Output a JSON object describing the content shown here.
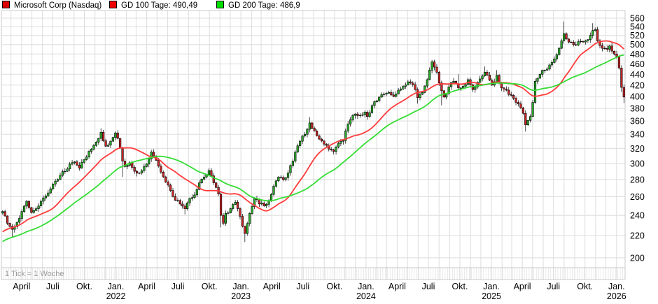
{
  "legend": {
    "series": [
      {
        "label": "Microsoft Corp (Nasdaq)",
        "color": "#dd0000"
      },
      {
        "label": "GD 100 Tage: 490,49",
        "color": "#ee0000"
      },
      {
        "label": "GD 200 Tage: 486,9",
        "color": "#00dd00"
      }
    ]
  },
  "footer_note": "1 Tick = 1 Woche",
  "chart_data": {
    "type": "candlestick",
    "title": "Microsoft Corp (Nasdaq)",
    "tick_interval": "1 Woche",
    "scale": "log",
    "weeks_visible": 260,
    "start_week": "2021-02-01",
    "ylim": [
      190,
      572
    ],
    "y_ticks": [
      560,
      540,
      520,
      500,
      480,
      460,
      440,
      420,
      400,
      380,
      360,
      340,
      320,
      300,
      280,
      260,
      240,
      220,
      200
    ],
    "x_ticks": [
      {
        "m": "2021-04",
        "label": "April"
      },
      {
        "m": "2021-07",
        "label": "Juli"
      },
      {
        "m": "2021-10",
        "label": "Okt."
      },
      {
        "m": "2022-01",
        "label": "Jan.",
        "year": "2022"
      },
      {
        "m": "2022-04",
        "label": "April"
      },
      {
        "m": "2022-07",
        "label": "Juli"
      },
      {
        "m": "2022-10",
        "label": "Okt."
      },
      {
        "m": "2023-01",
        "label": "Jan.",
        "year": "2023"
      },
      {
        "m": "2023-04",
        "label": "April"
      },
      {
        "m": "2023-07",
        "label": "Juli"
      },
      {
        "m": "2023-10",
        "label": "Okt."
      },
      {
        "m": "2024-01",
        "label": "Jan.",
        "year": "2024"
      },
      {
        "m": "2024-04",
        "label": "April"
      },
      {
        "m": "2024-07",
        "label": "Juli"
      },
      {
        "m": "2024-10",
        "label": "Okt."
      },
      {
        "m": "2025-01",
        "label": "Jan.",
        "year": "2025"
      },
      {
        "m": "2025-04",
        "label": "April"
      },
      {
        "m": "2025-07",
        "label": "Juli"
      },
      {
        "m": "2025-10",
        "label": "Okt."
      },
      {
        "m": "2026-01",
        "label": "Jan.",
        "year": "2026"
      }
    ],
    "close_anchors": [
      [
        -40,
        184
      ],
      [
        -36,
        196
      ],
      [
        -32,
        209
      ],
      [
        -28,
        213
      ],
      [
        -24,
        209
      ],
      [
        -20,
        208
      ],
      [
        -16,
        214
      ],
      [
        -12,
        217
      ],
      [
        -8,
        223
      ],
      [
        -4,
        233
      ],
      [
        -2,
        240
      ],
      [
        0,
        244
      ],
      [
        2,
        232
      ],
      [
        4,
        226
      ],
      [
        6,
        233
      ],
      [
        8,
        244
      ],
      [
        10,
        255
      ],
      [
        12,
        243
      ],
      [
        14,
        247
      ],
      [
        16,
        255
      ],
      [
        18,
        261
      ],
      [
        20,
        269
      ],
      [
        22,
        278
      ],
      [
        24,
        285
      ],
      [
        26,
        290
      ],
      [
        28,
        299
      ],
      [
        30,
        302
      ],
      [
        32,
        294
      ],
      [
        34,
        305
      ],
      [
        36,
        316
      ],
      [
        38,
        324
      ],
      [
        40,
        334
      ],
      [
        41,
        343
      ],
      [
        43,
        323
      ],
      [
        45,
        330
      ],
      [
        47,
        342
      ],
      [
        48,
        334
      ],
      [
        49,
        321
      ],
      [
        50,
        303
      ],
      [
        51,
        296
      ],
      [
        53,
        301
      ],
      [
        55,
        290
      ],
      [
        57,
        288
      ],
      [
        59,
        296
      ],
      [
        61,
        306
      ],
      [
        62,
        315
      ],
      [
        64,
        304
      ],
      [
        66,
        289
      ],
      [
        68,
        277
      ],
      [
        70,
        267
      ],
      [
        72,
        256
      ],
      [
        74,
        252
      ],
      [
        76,
        247
      ],
      [
        78,
        258
      ],
      [
        80,
        262
      ],
      [
        82,
        276
      ],
      [
        84,
        283
      ],
      [
        86,
        291
      ],
      [
        88,
        276
      ],
      [
        90,
        263
      ],
      [
        91,
        240
      ],
      [
        92,
        232
      ],
      [
        93,
        242
      ],
      [
        95,
        247
      ],
      [
        97,
        254
      ],
      [
        99,
        239
      ],
      [
        100,
        229
      ],
      [
        101,
        222
      ],
      [
        103,
        242
      ],
      [
        105,
        258
      ],
      [
        107,
        252
      ],
      [
        109,
        250
      ],
      [
        111,
        256
      ],
      [
        113,
        272
      ],
      [
        115,
        283
      ],
      [
        117,
        280
      ],
      [
        119,
        288
      ],
      [
        121,
        303
      ],
      [
        122,
        315
      ],
      [
        124,
        330
      ],
      [
        126,
        340
      ],
      [
        128,
        357
      ],
      [
        130,
        345
      ],
      [
        132,
        333
      ],
      [
        134,
        326
      ],
      [
        136,
        319
      ],
      [
        138,
        316
      ],
      [
        140,
        327
      ],
      [
        142,
        331
      ],
      [
        143,
        345
      ],
      [
        145,
        362
      ],
      [
        147,
        371
      ],
      [
        149,
        369
      ],
      [
        151,
        374
      ],
      [
        152,
        367
      ],
      [
        153,
        373
      ],
      [
        155,
        391
      ],
      [
        157,
        399
      ],
      [
        159,
        404
      ],
      [
        161,
        407
      ],
      [
        163,
        400
      ],
      [
        165,
        411
      ],
      [
        167,
        418
      ],
      [
        169,
        426
      ],
      [
        171,
        421
      ],
      [
        173,
        398
      ],
      [
        175,
        407
      ],
      [
        177,
        430
      ],
      [
        178,
        448
      ],
      [
        179,
        464
      ],
      [
        181,
        444
      ],
      [
        183,
        410
      ],
      [
        184,
        399
      ],
      [
        186,
        417
      ],
      [
        188,
        427
      ],
      [
        190,
        415
      ],
      [
        192,
        418
      ],
      [
        194,
        430
      ],
      [
        196,
        412
      ],
      [
        198,
        425
      ],
      [
        200,
        437
      ],
      [
        201,
        444
      ],
      [
        203,
        429
      ],
      [
        204,
        420
      ],
      [
        205,
        426
      ],
      [
        206,
        438
      ],
      [
        208,
        415
      ],
      [
        210,
        411
      ],
      [
        212,
        402
      ],
      [
        214,
        390
      ],
      [
        216,
        381
      ],
      [
        217,
        372
      ],
      [
        218,
        354
      ],
      [
        219,
        361
      ],
      [
        220,
        367
      ],
      [
        221,
        390
      ],
      [
        222,
        427
      ],
      [
        224,
        440
      ],
      [
        226,
        448
      ],
      [
        228,
        458
      ],
      [
        230,
        470
      ],
      [
        232,
        492
      ],
      [
        233,
        508
      ],
      [
        234,
        524
      ],
      [
        235,
        512
      ],
      [
        237,
        505
      ],
      [
        239,
        499
      ],
      [
        241,
        507
      ],
      [
        243,
        508
      ],
      [
        245,
        520
      ],
      [
        246,
        531
      ],
      [
        247,
        533
      ],
      [
        248,
        508
      ],
      [
        250,
        492
      ],
      [
        252,
        490
      ],
      [
        253,
        497
      ],
      [
        254,
        486
      ],
      [
        255,
        480
      ],
      [
        256,
        475
      ],
      [
        257,
        452
      ],
      [
        258,
        416
      ],
      [
        259,
        399
      ]
    ],
    "wick_overrides": {
      "high": {
        "41": 349,
        "47": 344,
        "62": 318,
        "86": 294,
        "128": 366,
        "169": 430,
        "179": 468,
        "190": 440,
        "201": 455,
        "206": 448,
        "222": 432,
        "234": 552,
        "246": 548
      },
      "low": {
        "4": 218,
        "50": 283,
        "76": 241,
        "91": 228,
        "101": 214,
        "173": 388,
        "183": 385,
        "218": 344,
        "258": 408,
        "259": 389
      }
    },
    "moving_averages": [
      {
        "name": "GD 100 Tage",
        "weeks": 20,
        "current_label": "490,49",
        "color": "#ff3b3b"
      },
      {
        "name": "GD 200 Tage",
        "weeks": 40,
        "current_label": "486,9",
        "color": "#35dd35"
      }
    ],
    "colors": {
      "up_body": "#2bb02b",
      "down_body": "#cc2626",
      "outline": "#000000",
      "grid": "#dddddd",
      "frame": "#c8c8c8",
      "axis_text": "#000000",
      "note_text": "#9a9a9a"
    }
  }
}
